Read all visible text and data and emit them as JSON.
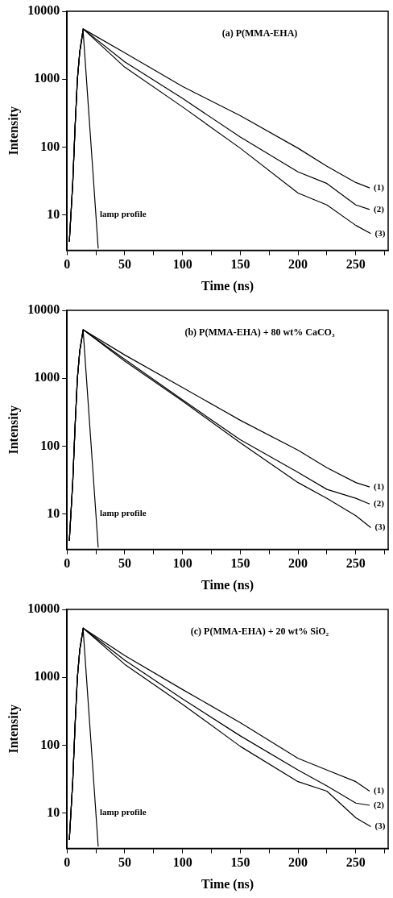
{
  "chart_data": [
    {
      "type": "line",
      "title": "(a) P(MMA-EHA)",
      "xlabel": "Time (ns)",
      "ylabel": "Intensity",
      "log": "y",
      "grid": false,
      "legend": false,
      "marker": "none",
      "line_style": "solid",
      "xlim": [
        0,
        278
      ],
      "xticks": [
        0,
        {
          "value": 25,
          "label": null
        },
        50,
        {
          "value": 75,
          "label": null
        },
        100,
        {
          "value": 125,
          "label": null
        },
        150,
        {
          "value": 175,
          "label": null
        },
        200,
        {
          "value": 225,
          "label": null
        },
        250,
        {
          "value": 275,
          "label": null
        }
      ],
      "ylim": [
        3,
        10000
      ],
      "yticks": [
        10,
        100,
        1000,
        10000
      ],
      "series": [
        {
          "name": "lamp profile",
          "color": "#000000",
          "x": [
            2,
            5,
            7,
            9,
            11,
            14,
            18,
            22,
            25,
            27
          ],
          "values": [
            4,
            30,
            200,
            1000,
            2500,
            5000,
            520,
            55,
            10,
            3.2
          ]
        },
        {
          "name": "(1)",
          "color": "#000000",
          "x": [
            2,
            5,
            7,
            9,
            11,
            14,
            50,
            100,
            150,
            200,
            225,
            250,
            262
          ],
          "values": [
            4,
            30,
            200,
            1000,
            2500,
            5500,
            2450,
            780,
            290,
            96,
            52,
            30,
            25
          ]
        },
        {
          "name": "(2)",
          "color": "#000000",
          "x": [
            2,
            5,
            7,
            9,
            11,
            14,
            50,
            100,
            150,
            200,
            225,
            250,
            262
          ],
          "values": [
            4,
            30,
            200,
            1000,
            2500,
            5500,
            1800,
            520,
            140,
            43,
            29,
            14,
            12
          ]
        },
        {
          "name": "(3)",
          "color": "#000000",
          "x": [
            2,
            5,
            7,
            9,
            11,
            14,
            50,
            100,
            150,
            200,
            225,
            250,
            263
          ],
          "values": [
            4,
            30,
            200,
            1000,
            2500,
            5500,
            1500,
            390,
            96,
            21,
            14,
            7,
            5.3
          ]
        }
      ]
    },
    {
      "type": "line",
      "title": "(b) P(MMA-EHA) + 80 wt% CaCO₃",
      "xlabel": "Time (ns)",
      "ylabel": "Intensity",
      "log": "y",
      "grid": false,
      "legend": false,
      "marker": "none",
      "line_style": "solid",
      "xlim": [
        0,
        278
      ],
      "xticks": [
        0,
        {
          "value": 25,
          "label": null
        },
        50,
        {
          "value": 75,
          "label": null
        },
        100,
        {
          "value": 125,
          "label": null
        },
        150,
        {
          "value": 175,
          "label": null
        },
        200,
        {
          "value": 225,
          "label": null
        },
        250,
        {
          "value": 275,
          "label": null
        }
      ],
      "ylim": [
        3,
        10000
      ],
      "yticks": [
        10,
        100,
        1000,
        10000
      ],
      "series": [
        {
          "name": "lamp profile",
          "color": "#000000",
          "x": [
            2,
            5,
            7,
            9,
            11,
            14,
            18,
            22,
            25,
            27
          ],
          "values": [
            4,
            30,
            200,
            1000,
            2500,
            5000,
            520,
            55,
            10,
            3.2
          ]
        },
        {
          "name": "(1)",
          "color": "#000000",
          "x": [
            2,
            5,
            7,
            9,
            11,
            14,
            50,
            100,
            150,
            200,
            225,
            250,
            262
          ],
          "values": [
            4,
            30,
            200,
            1000,
            2500,
            5200,
            2200,
            730,
            240,
            87,
            48,
            29,
            25
          ]
        },
        {
          "name": "(2)",
          "color": "#000000",
          "x": [
            2,
            5,
            7,
            9,
            11,
            14,
            50,
            100,
            150,
            200,
            225,
            250,
            262
          ],
          "values": [
            4,
            30,
            200,
            1000,
            2500,
            5200,
            1900,
            480,
            124,
            41,
            23,
            17,
            14
          ]
        },
        {
          "name": "(3)",
          "color": "#000000",
          "x": [
            2,
            5,
            7,
            9,
            11,
            14,
            50,
            100,
            150,
            200,
            225,
            250,
            263
          ],
          "values": [
            4,
            30,
            200,
            1000,
            2500,
            5200,
            1790,
            460,
            112,
            29,
            17,
            9.4,
            6.3
          ]
        }
      ]
    },
    {
      "type": "line",
      "title": "(c) P(MMA-EHA) + 20 wt% SiO₂",
      "xlabel": "Time (ns)",
      "ylabel": "Intensity",
      "log": "y",
      "grid": false,
      "legend": false,
      "marker": "none",
      "line_style": "solid",
      "xlim": [
        0,
        278
      ],
      "xticks": [
        0,
        {
          "value": 25,
          "label": null
        },
        50,
        {
          "value": 75,
          "label": null
        },
        100,
        {
          "value": 125,
          "label": null
        },
        150,
        {
          "value": 175,
          "label": null
        },
        200,
        {
          "value": 225,
          "label": null
        },
        250,
        {
          "value": 275,
          "label": null
        }
      ],
      "ylim": [
        3,
        10000
      ],
      "yticks": [
        10,
        100,
        1000,
        10000
      ],
      "series": [
        {
          "name": "lamp profile",
          "color": "#000000",
          "x": [
            2,
            5,
            7,
            9,
            11,
            14,
            18,
            22,
            25,
            27
          ],
          "values": [
            4,
            30,
            200,
            1000,
            2500,
            5000,
            520,
            55,
            10,
            3.2
          ]
        },
        {
          "name": "(1)",
          "color": "#000000",
          "x": [
            2,
            5,
            7,
            9,
            11,
            14,
            50,
            100,
            150,
            200,
            225,
            250,
            262
          ],
          "values": [
            4,
            30,
            200,
            1000,
            2500,
            5300,
            2090,
            660,
            215,
            64,
            43,
            29,
            21
          ]
        },
        {
          "name": "(2)",
          "color": "#000000",
          "x": [
            2,
            5,
            7,
            9,
            11,
            14,
            50,
            100,
            150,
            200,
            225,
            250,
            262
          ],
          "values": [
            4,
            30,
            200,
            1000,
            2500,
            5300,
            1790,
            480,
            137,
            43,
            25,
            14,
            13
          ]
        },
        {
          "name": "(3)",
          "color": "#000000",
          "x": [
            2,
            5,
            7,
            9,
            11,
            14,
            50,
            100,
            150,
            200,
            225,
            250,
            263
          ],
          "values": [
            4,
            30,
            200,
            1000,
            2500,
            5300,
            1550,
            400,
            96,
            29,
            21,
            8.5,
            6.3
          ]
        }
      ]
    }
  ]
}
